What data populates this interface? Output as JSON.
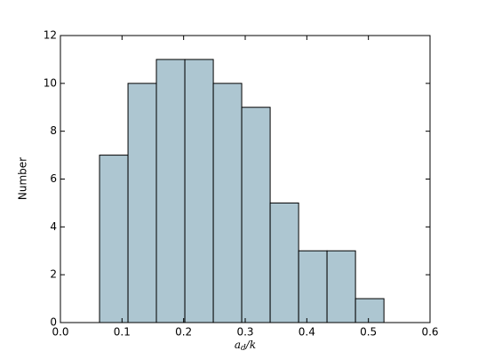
{
  "chart_data": {
    "type": "histogram",
    "xlabel": {
      "base": "a",
      "sub": "d",
      "rest": "/k"
    },
    "ylabel": "Number",
    "bins": [
      0.0635,
      0.1097,
      0.1558,
      0.202,
      0.2482,
      0.2943,
      0.3405,
      0.3867,
      0.4328,
      0.479,
      0.5252
    ],
    "values": [
      7,
      10,
      11,
      11,
      10,
      9,
      5,
      3,
      3,
      1
    ],
    "color": "#adc6d1",
    "xlim": [
      0,
      0.6
    ],
    "xticks": [
      {
        "value": 0,
        "label": "0.0"
      },
      0.1,
      0.2,
      0.3,
      0.4,
      0.5,
      0.6
    ],
    "ylim": [
      0,
      12
    ],
    "yticks": [
      0,
      2,
      4,
      6,
      8,
      10,
      12
    ]
  }
}
